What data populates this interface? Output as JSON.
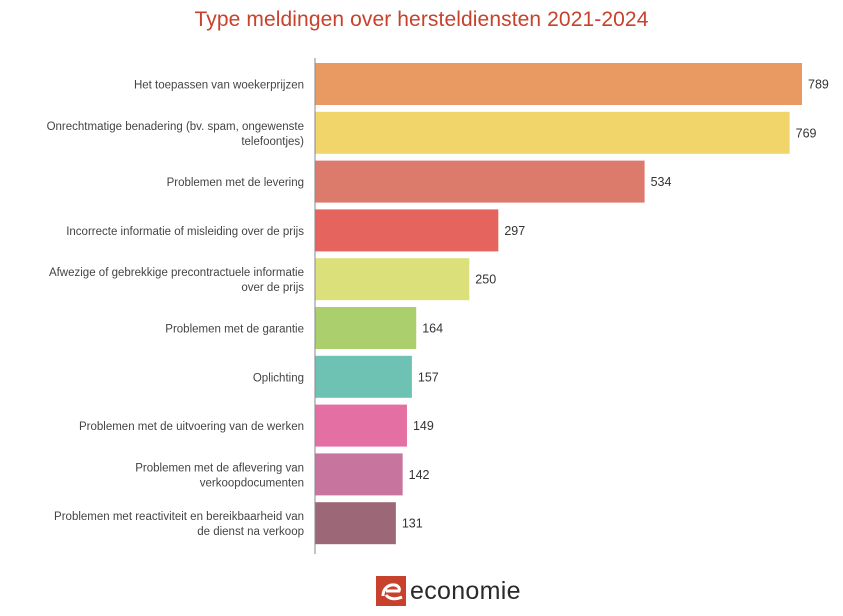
{
  "chart_data": {
    "type": "bar",
    "orientation": "horizontal",
    "title": "Type meldingen over hersteldiensten 2021-2024",
    "xlabel": "",
    "ylabel": "",
    "xlim": [
      0,
      789
    ],
    "grid": false,
    "legend": "none",
    "categories": [
      [
        "Het toepassen van woekerprijzen"
      ],
      [
        "Onrechtmatige benadering (bv. spam, ongewenste",
        "telefoontjes)"
      ],
      [
        "Problemen met de levering"
      ],
      [
        "Incorrecte informatie of misleiding over de prijs"
      ],
      [
        "Afwezige of gebrekkige precontractuele informatie",
        "over de prijs"
      ],
      [
        "Problemen met de garantie"
      ],
      [
        "Oplichting"
      ],
      [
        "Problemen met de uitvoering van de werken"
      ],
      [
        "Problemen met de aflevering van",
        "verkoopdocumenten"
      ],
      [
        "Problemen met reactiviteit en bereikbaarheid van",
        "de dienst na verkoop"
      ]
    ],
    "values": [
      789,
      769,
      534,
      297,
      250,
      164,
      157,
      149,
      142,
      131
    ],
    "data_labels": [
      "789",
      "769",
      "534",
      "297",
      "250",
      "164",
      "157",
      "149",
      "142",
      "131"
    ],
    "colors": [
      "#e99a62",
      "#f1d46a",
      "#dc7b6c",
      "#e5655e",
      "#dce07a",
      "#abcf6c",
      "#6ec2b3",
      "#e46fa3",
      "#c7749e",
      "#9c6776"
    ]
  },
  "colors": {
    "title": "#c8412c",
    "axis": "#888888",
    "logo_mark": "#c8412c"
  },
  "logo": {
    "text": "economie",
    "icon": "e-logo-icon"
  }
}
